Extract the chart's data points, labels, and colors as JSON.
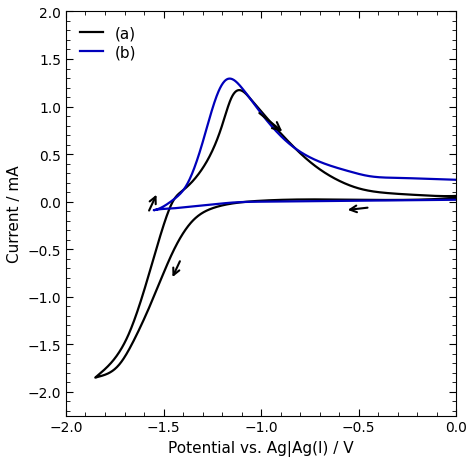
{
  "title": "",
  "xlabel": "Potential vs. Ag|Ag(I) / V",
  "ylabel": "Current / mA",
  "xlim": [
    -2.0,
    0.0
  ],
  "ylim": [
    -2.25,
    2.0
  ],
  "xticks": [
    -2.0,
    -1.5,
    -1.0,
    -0.5,
    0.0
  ],
  "yticks": [
    -2.0,
    -1.5,
    -1.0,
    -0.5,
    0.0,
    0.5,
    1.0,
    1.5,
    2.0
  ],
  "color_a": "#000000",
  "color_b": "#0000bb",
  "linewidth": 1.6,
  "background": "#ffffff",
  "legend_labels": [
    "(a)",
    "(b)"
  ],
  "figsize": [
    4.74,
    4.64
  ],
  "dpi": 100
}
